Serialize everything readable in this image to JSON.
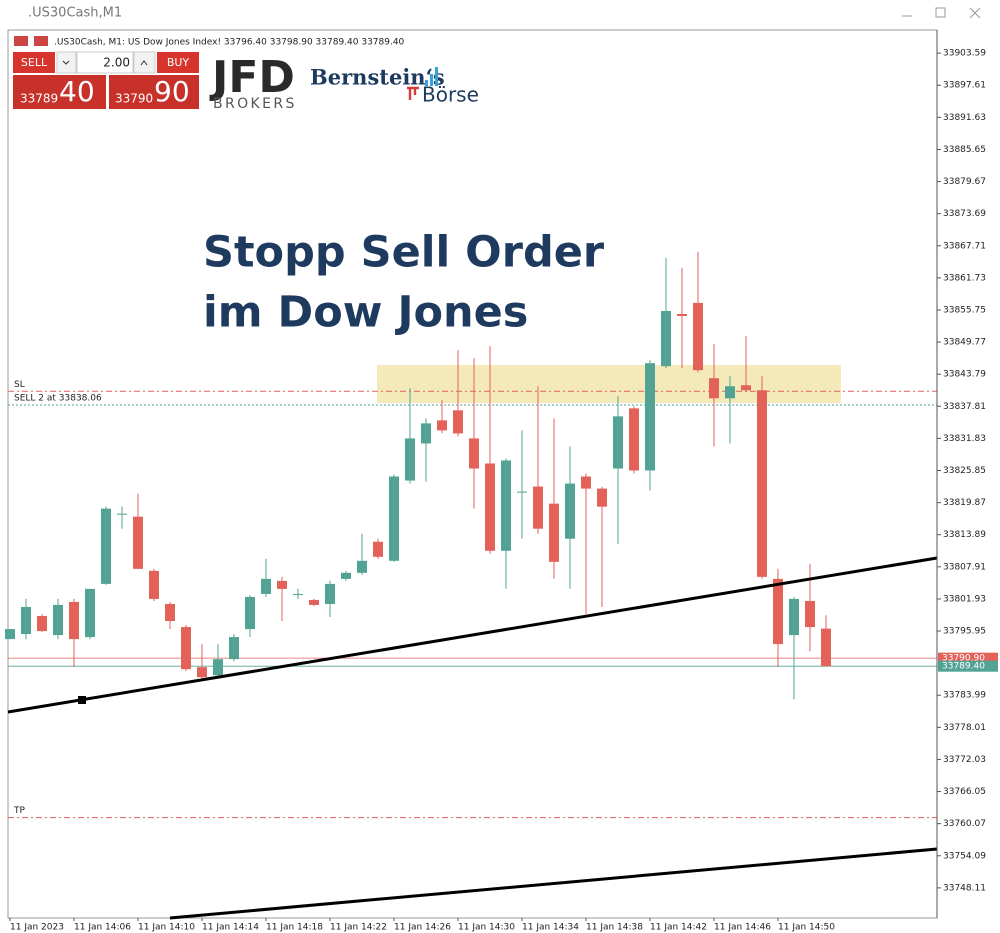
{
  "window": {
    "title": ".US30Cash,M1"
  },
  "trade_panel": {
    "sell_label": "SELL",
    "buy_label": "BUY",
    "volume": "2.00",
    "bid_big": "33789",
    "bid_small": "40",
    "ask_big": "33790",
    "ask_small": "90"
  },
  "logos": {
    "jfd": "JFD",
    "jfd_sub": "BROKERS",
    "bernstein": "Bernstein‘s",
    "boerse": "Börse"
  },
  "chart_data": {
    "type": "candlestick",
    "subtitle": ".US30Cash, M1:  US Dow Jones Index!  33796.40 33798.90 33789.40 33789.40",
    "annotations": [
      "Stopp Sell Order",
      "im Dow Jones"
    ],
    "categories": [
      "11 Jan 2023",
      null,
      null,
      null,
      "11 Jan 14:06",
      null,
      null,
      null,
      "11 Jan 14:10",
      null,
      null,
      null,
      "11 Jan 14:14",
      null,
      null,
      null,
      "11 Jan 14:18",
      null,
      null,
      null,
      "11 Jan 14:22",
      null,
      null,
      null,
      "11 Jan 14:26",
      null,
      null,
      null,
      "11 Jan 14:30",
      null,
      null,
      null,
      "11 Jan 14:34",
      null,
      null,
      null,
      "11 Jan 14:38",
      null,
      null,
      null,
      "11 Jan 14:42",
      null,
      null,
      null,
      "11 Jan 14:46",
      null,
      null,
      null,
      "11 Jan 14:50",
      null,
      null,
      null
    ],
    "open": [
      33794.45,
      33795.39,
      33798.75,
      33795.2,
      33801.37,
      33794.83,
      33804.73,
      33817.62,
      33817.25,
      33807.16,
      33800.99,
      33796.69,
      33789.22,
      33787.72,
      33790.71,
      33796.32,
      33802.86,
      33805.29,
      33802.86,
      33801.74,
      33800.99,
      33805.66,
      33806.79,
      33812.58,
      33809.03,
      33823.98,
      33830.89,
      33835.19,
      33837.06,
      33831.83,
      33827.16,
      33810.9,
      33821.92,
      33822.86,
      33819.68,
      33813.14,
      33824.73,
      33822.48,
      33826.22,
      33837.43,
      33825.85,
      33845.28,
      33855.0,
      33857.06,
      33843.04,
      33839.3,
      33841.73,
      33840.8,
      33805.66,
      33795.2,
      33801.55,
      33796.4
    ],
    "high": [
      33796.32,
      33801.93,
      33799.12,
      33801.93,
      33801.93,
      33803.8,
      33819.12,
      33819.12,
      33821.55,
      33807.53,
      33801.37,
      33797.07,
      33793.52,
      33793.52,
      33795.39,
      33802.67,
      33809.4,
      33806.04,
      33803.8,
      33801.93,
      33805.29,
      33807.16,
      33814.07,
      33813.14,
      33825.1,
      33841.17,
      33835.57,
      33838.93,
      33848.27,
      33846.78,
      33849.02,
      33828.09,
      33833.32,
      33841.55,
      33835.57,
      33830.33,
      33825.29,
      33822.86,
      33839.68,
      33837.81,
      33846.4,
      33865.47,
      33863.6,
      33866.59,
      33849.39,
      33843.41,
      33850.89,
      33843.41,
      33807.53,
      33802.3,
      33808.47,
      33798.9
    ],
    "low": [
      33794.45,
      33794.45,
      33795.76,
      33794.45,
      33789.22,
      33794.45,
      33804.54,
      33815.01,
      33807.53,
      33801.55,
      33796.32,
      33788.47,
      33786.98,
      33787.54,
      33790.34,
      33794.83,
      33802.3,
      33797.82,
      33801.93,
      33800.62,
      33798.56,
      33805.29,
      33806.41,
      33809.4,
      33808.84,
      33823.42,
      33823.79,
      33832.76,
      33832.2,
      33818.75,
      33810.34,
      33803.8,
      33813.14,
      33814.07,
      33805.66,
      33803.8,
      33799.12,
      33800.43,
      33812.21,
      33825.29,
      33822.11,
      33844.91,
      33844.91,
      33844.16,
      33830.33,
      33830.89,
      33840.42,
      33805.66,
      33789.22,
      33783.24,
      33792.21,
      33789.4
    ],
    "close": [
      33796.32,
      33800.43,
      33795.95,
      33800.81,
      33794.45,
      33803.8,
      33818.75,
      33817.81,
      33807.53,
      33801.93,
      33797.82,
      33788.85,
      33787.35,
      33790.71,
      33794.83,
      33802.3,
      33805.66,
      33803.8,
      33802.86,
      33800.81,
      33804.73,
      33806.79,
      33809.03,
      33809.78,
      33824.73,
      33831.83,
      33834.63,
      33833.32,
      33832.76,
      33826.22,
      33810.9,
      33827.72,
      33821.92,
      33815.01,
      33808.84,
      33823.42,
      33822.48,
      33819.12,
      33835.94,
      33825.85,
      33845.84,
      33855.56,
      33854.63,
      33844.54,
      33839.3,
      33841.55,
      33840.8,
      33806.04,
      33793.52,
      33801.93,
      33796.69,
      33789.4
    ],
    "up_color": "#52a394",
    "down_color": "#e2625a",
    "ylim": [
      33742.5,
      33907.9
    ],
    "yticks": [
      33903.59,
      33897.61,
      33891.63,
      33885.65,
      33879.67,
      33873.69,
      33867.71,
      33861.73,
      33855.75,
      33849.77,
      33843.79,
      33837.81,
      33831.83,
      33825.85,
      33819.87,
      33813.89,
      33807.91,
      33801.93,
      33795.95,
      33783.99,
      33778.01,
      33772.03,
      33766.05,
      33760.07,
      33754.09,
      33748.11
    ],
    "grid": false,
    "orders": [
      {
        "label": "SL",
        "price": 33840.61,
        "color": "#e06060",
        "style": "dashdot"
      },
      {
        "label": "SELL 2 at 33838.06",
        "price": 33838.06,
        "color": "#52a394",
        "style": "dot"
      },
      {
        "label": "TP",
        "price": 33761.19,
        "color": "#e06060",
        "style": "dashdot"
      }
    ],
    "ask": {
      "value": 33790.9,
      "label": "33790.90",
      "color": "#e2625a"
    },
    "bid": {
      "value": 33789.4,
      "label": "33789.40",
      "color": "#52a394"
    }
  }
}
